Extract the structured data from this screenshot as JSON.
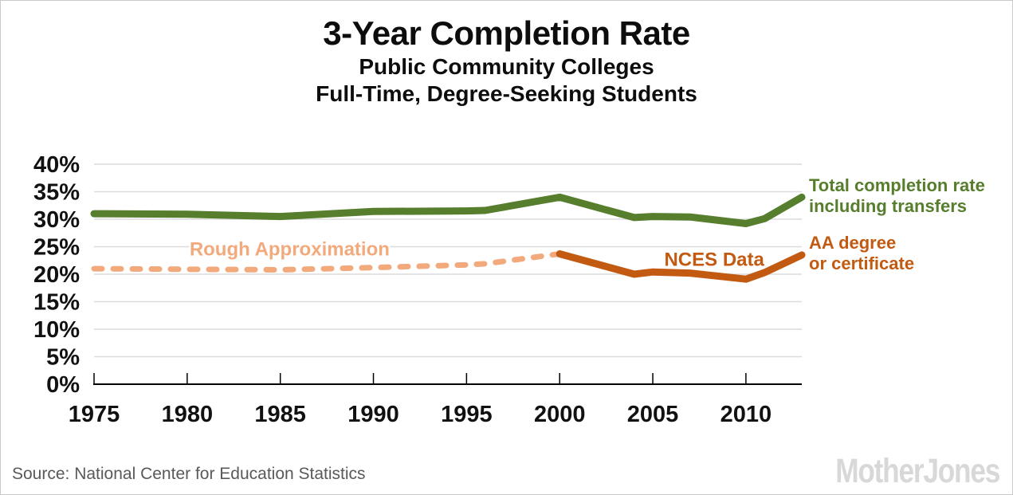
{
  "header": {
    "title": "3-Year Completion Rate",
    "subtitle1": "Public Community Colleges",
    "subtitle2": "Full-Time, Degree-Seeking Students"
  },
  "legend": {
    "total_line1": "Total completion rate",
    "total_line2": "including transfers",
    "aa_line1": "AA degree",
    "aa_line2": "or certificate"
  },
  "footer": {
    "source": "Source: National Center for Education Statistics",
    "logo": "MotherJones"
  },
  "colors": {
    "green": "#567e2d",
    "orange": "#c35a11",
    "light_orange": "#f2aa7d",
    "gridline": "#dcdcdc",
    "axis": "#000000",
    "tick_text": "#111111",
    "source_text": "#595959",
    "logo_text": "#d8d8d8"
  },
  "chart_data": {
    "type": "line",
    "title": "3-Year Completion Rate",
    "subtitle": "Public Community Colleges, Full-Time, Degree-Seeking Students",
    "grid": true,
    "legend_position": "right",
    "x_axis": {
      "ticks": [
        1975,
        1980,
        1985,
        1990,
        1995,
        2000,
        2005,
        2010
      ],
      "min": 1975,
      "max": 2013
    },
    "y_axis": {
      "ticks": [
        "0%",
        "5%",
        "10%",
        "15%",
        "20%",
        "25%",
        "30%",
        "35%",
        "40%"
      ],
      "tick_values": [
        0,
        5,
        10,
        15,
        20,
        25,
        30,
        35,
        40
      ],
      "min": 0,
      "max": 40
    },
    "series": [
      {
        "key": "total",
        "name": "Total completion rate including transfers",
        "color_key": "green",
        "style": "solid",
        "points": [
          [
            1975,
            31.0
          ],
          [
            1980,
            30.9
          ],
          [
            1985,
            30.5
          ],
          [
            1990,
            31.4
          ],
          [
            1995,
            31.5
          ],
          [
            1996,
            31.6
          ],
          [
            2000,
            34.0
          ],
          [
            2004,
            30.3
          ],
          [
            2005,
            30.5
          ],
          [
            2007,
            30.4
          ],
          [
            2010,
            29.2
          ],
          [
            2011,
            30.1
          ],
          [
            2013,
            34.0
          ]
        ]
      },
      {
        "key": "approximation",
        "name": "Rough Approximation (AA degree or certificate, estimated)",
        "color_key": "light_orange",
        "style": "dashed",
        "points": [
          [
            1975,
            21.0
          ],
          [
            1980,
            20.9
          ],
          [
            1985,
            20.8
          ],
          [
            1990,
            21.2
          ],
          [
            1995,
            21.7
          ],
          [
            1996,
            21.9
          ],
          [
            2000,
            23.7
          ]
        ]
      },
      {
        "key": "nces",
        "name": "AA degree or certificate (NCES Data)",
        "color_key": "orange",
        "style": "solid",
        "points": [
          [
            2000,
            23.7
          ],
          [
            2004,
            20.0
          ],
          [
            2005,
            20.4
          ],
          [
            2007,
            20.2
          ],
          [
            2010,
            19.1
          ],
          [
            2011,
            20.3
          ],
          [
            2013,
            23.5
          ]
        ]
      }
    ],
    "annotations": [
      {
        "key": "rough",
        "text": "Rough Approximation",
        "x": 1985.5,
        "y": 24.7,
        "color_key": "light_orange",
        "bg": true
      },
      {
        "key": "nces",
        "text": "NCES Data",
        "x": 2008.3,
        "y": 22.8,
        "color_key": "orange",
        "bg": false
      }
    ]
  }
}
